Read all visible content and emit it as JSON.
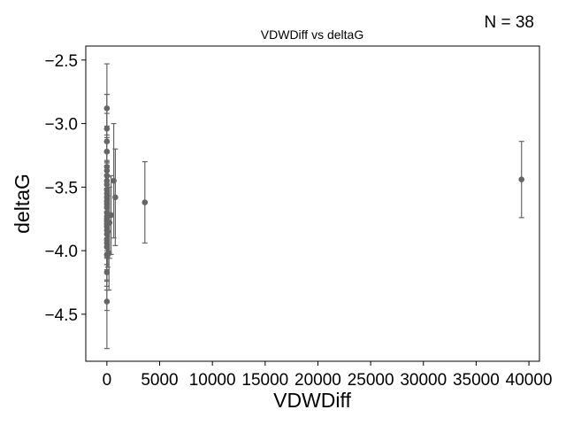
{
  "annotation": "N = 38",
  "chart_data": {
    "type": "scatter",
    "title": "VDWDiff vs deltaG",
    "xlabel": "VDWDiff",
    "ylabel": "deltaG",
    "xlim": [
      -2000,
      41000
    ],
    "ylim": [
      -4.87,
      -2.39
    ],
    "xticks": [
      0,
      5000,
      10000,
      15000,
      20000,
      25000,
      30000,
      35000,
      40000
    ],
    "yticks": [
      -2.5,
      -3.0,
      -3.5,
      -4.0,
      -4.5
    ],
    "xtick_labels": [
      "0",
      "5000",
      "10000",
      "15000",
      "20000",
      "25000",
      "30000",
      "35000",
      "40000"
    ],
    "ytick_labels": [
      "−2.5",
      "−3.0",
      "−3.5",
      "−4.0",
      "−4.5"
    ],
    "grid": false,
    "series": [
      {
        "color": "#666666",
        "points": [
          {
            "x": 0,
            "y": -2.88,
            "err": 0.35
          },
          {
            "x": 0,
            "y": -3.04,
            "err": 0.27
          },
          {
            "x": 0,
            "y": -3.14,
            "err": 0.37
          },
          {
            "x": 0,
            "y": -3.22,
            "err": 0.3
          },
          {
            "x": 0,
            "y": -3.34,
            "err": 0.32
          },
          {
            "x": 0,
            "y": -3.37,
            "err": 0.28
          },
          {
            "x": 0,
            "y": -3.41,
            "err": 0.3
          },
          {
            "x": 0,
            "y": -3.45,
            "err": 0.31
          },
          {
            "x": 0,
            "y": -3.48,
            "err": 0.33
          },
          {
            "x": 0,
            "y": -3.52,
            "err": 0.3
          },
          {
            "x": 0,
            "y": -3.55,
            "err": 0.32
          },
          {
            "x": 0,
            "y": -3.58,
            "err": 0.29
          },
          {
            "x": 0,
            "y": -3.61,
            "err": 0.31
          },
          {
            "x": 0,
            "y": -3.63,
            "err": 0.3
          },
          {
            "x": 0,
            "y": -3.66,
            "err": 0.32
          },
          {
            "x": 0,
            "y": -3.7,
            "err": 0.3
          },
          {
            "x": 0,
            "y": -3.73,
            "err": 0.31
          },
          {
            "x": 0,
            "y": -3.75,
            "err": 0.3
          },
          {
            "x": 0,
            "y": -3.77,
            "err": 0.29
          },
          {
            "x": 0,
            "y": -3.79,
            "err": 0.32
          },
          {
            "x": 0,
            "y": -3.81,
            "err": 0.3
          },
          {
            "x": 0,
            "y": -3.84,
            "err": 0.31
          },
          {
            "x": 0,
            "y": -3.87,
            "err": 0.3
          },
          {
            "x": 0,
            "y": -3.91,
            "err": 0.32
          },
          {
            "x": 0,
            "y": -3.94,
            "err": 0.3
          },
          {
            "x": 0,
            "y": -3.97,
            "err": 0.31
          },
          {
            "x": 0,
            "y": -4.03,
            "err": 0.28
          },
          {
            "x": 0,
            "y": -4.17,
            "err": 0.3
          },
          {
            "x": 0,
            "y": -4.4,
            "err": 0.37
          },
          {
            "x": 80,
            "y": -3.85,
            "err": 0.28
          },
          {
            "x": 120,
            "y": -3.72,
            "err": 0.3
          },
          {
            "x": 200,
            "y": -4.02,
            "err": 0.29
          },
          {
            "x": 250,
            "y": -3.78,
            "err": 0.28
          },
          {
            "x": 400,
            "y": -3.72,
            "err": 0.31
          },
          {
            "x": 650,
            "y": -3.45,
            "err": 0.45
          },
          {
            "x": 800,
            "y": -3.58,
            "err": 0.38
          },
          {
            "x": 3600,
            "y": -3.62,
            "err": 0.32
          },
          {
            "x": 39300,
            "y": -3.44,
            "err": 0.3
          }
        ]
      }
    ]
  }
}
